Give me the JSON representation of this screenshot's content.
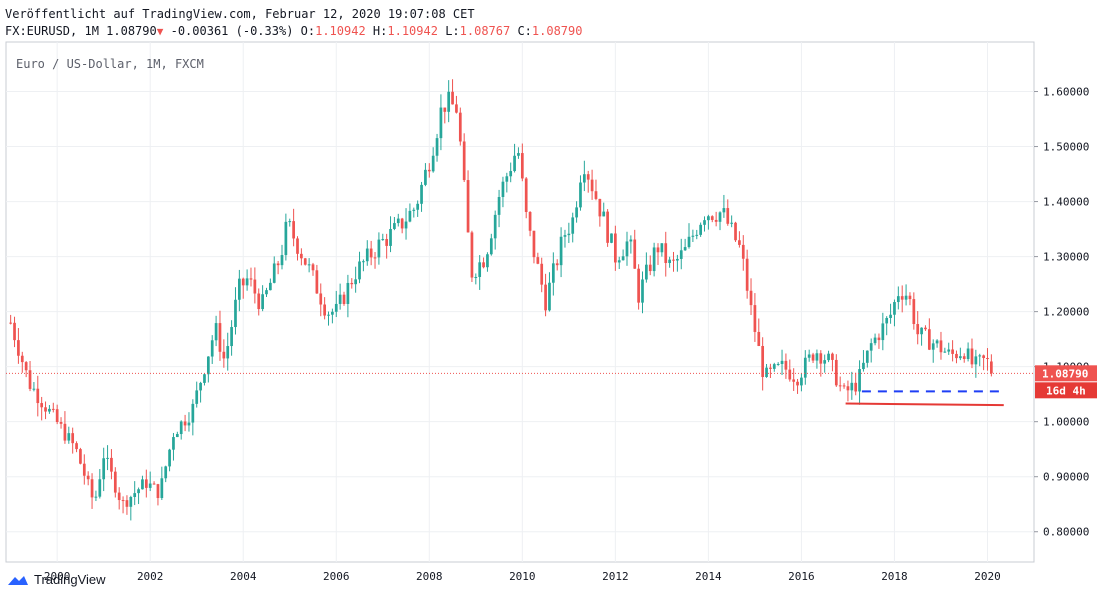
{
  "header": {
    "published": "Veröffentlicht auf TradingView.com, Februar 12, 2020 19:07:08 CET",
    "symbol": "FX:EURUSD, 1M",
    "last": "1.08790",
    "change": "-0.00361 (-0.33%)",
    "o_label": "O:",
    "o_value": "1.10942",
    "h_label": "H:",
    "h_value": "1.10942",
    "l_label": "L:",
    "l_value": "1.08767",
    "c_label": "C:",
    "c_value": "1.08790",
    "down_marker": "▼"
  },
  "chart_title": "Euro / US-Dollar, 1M, FXCM",
  "price_badge": "1.08790",
  "countdown_badge": "16d 4h",
  "logo_text": "TradingView",
  "colors": {
    "up": "#26a69a",
    "down": "#ef5350",
    "grid": "#eef0f3",
    "badge": "#ef5350",
    "hline_solid": "#e53935",
    "hline_dashed": "#1e3ef5"
  },
  "chart_data": {
    "type": "candlestick",
    "title": "Euro / US-Dollar, 1M, FXCM",
    "y_ticks": [
      "0.80000",
      "0.90000",
      "1.00000",
      "1.10000",
      "1.20000",
      "1.30000",
      "1.40000",
      "1.50000",
      "1.60000"
    ],
    "x_ticks": [
      "2000",
      "2002",
      "2004",
      "2006",
      "2008",
      "2010",
      "2012",
      "2014",
      "2016",
      "2018",
      "2020"
    ],
    "ylim": [
      0.745,
      1.69
    ],
    "xlim": [
      1998.9,
      2021.0
    ],
    "last_price": 1.0879,
    "close_path": [
      [
        1999.0,
        1.18
      ],
      [
        1999.4,
        1.07
      ],
      [
        1999.9,
        1.01
      ],
      [
        2000.4,
        0.95
      ],
      [
        2000.8,
        0.85
      ],
      [
        2001.0,
        0.94
      ],
      [
        2001.4,
        0.85
      ],
      [
        2001.9,
        0.89
      ],
      [
        2002.2,
        0.87
      ],
      [
        2002.5,
        0.98
      ],
      [
        2002.9,
        1.02
      ],
      [
        2003.4,
        1.17
      ],
      [
        2003.6,
        1.11
      ],
      [
        2003.9,
        1.24
      ],
      [
        2004.1,
        1.26
      ],
      [
        2004.4,
        1.21
      ],
      [
        2004.8,
        1.3
      ],
      [
        2004.95,
        1.36
      ],
      [
        2005.4,
        1.28
      ],
      [
        2005.8,
        1.2
      ],
      [
        2006.0,
        1.2
      ],
      [
        2006.4,
        1.27
      ],
      [
        2006.9,
        1.32
      ],
      [
        2007.3,
        1.35
      ],
      [
        2007.7,
        1.39
      ],
      [
        2007.95,
        1.46
      ],
      [
        2008.3,
        1.58
      ],
      [
        2008.6,
        1.57
      ],
      [
        2008.9,
        1.27
      ],
      [
        2009.2,
        1.3
      ],
      [
        2009.5,
        1.41
      ],
      [
        2009.9,
        1.5
      ],
      [
        2010.1,
        1.36
      ],
      [
        2010.5,
        1.22
      ],
      [
        2010.9,
        1.34
      ],
      [
        2011.1,
        1.37
      ],
      [
        2011.3,
        1.48
      ],
      [
        2011.7,
        1.38
      ],
      [
        2012.0,
        1.3
      ],
      [
        2012.3,
        1.33
      ],
      [
        2012.5,
        1.23
      ],
      [
        2012.9,
        1.32
      ],
      [
        2013.2,
        1.28
      ],
      [
        2013.5,
        1.31
      ],
      [
        2013.9,
        1.38
      ],
      [
        2014.3,
        1.38
      ],
      [
        2014.7,
        1.31
      ],
      [
        2014.9,
        1.21
      ],
      [
        2015.2,
        1.08
      ],
      [
        2015.6,
        1.1
      ],
      [
        2015.9,
        1.08
      ],
      [
        2016.3,
        1.13
      ],
      [
        2016.6,
        1.11
      ],
      [
        2016.9,
        1.05
      ],
      [
        2017.2,
        1.07
      ],
      [
        2017.5,
        1.14
      ],
      [
        2017.9,
        1.19
      ],
      [
        2018.1,
        1.24
      ],
      [
        2018.3,
        1.23
      ],
      [
        2018.5,
        1.16
      ],
      [
        2018.9,
        1.14
      ],
      [
        2019.2,
        1.12
      ],
      [
        2019.5,
        1.13
      ],
      [
        2019.7,
        1.1
      ],
      [
        2019.9,
        1.11
      ],
      [
        2020.05,
        1.1094
      ],
      [
        2020.1,
        1.0879
      ]
    ],
    "annotations": {
      "dashed_level": {
        "value": 1.055,
        "x_start": 2017.3,
        "x_end": 2020.35
      },
      "solid_level": {
        "value": 1.033,
        "value_end": 1.03,
        "x_start": 2016.95,
        "x_end": 2020.35
      }
    }
  }
}
